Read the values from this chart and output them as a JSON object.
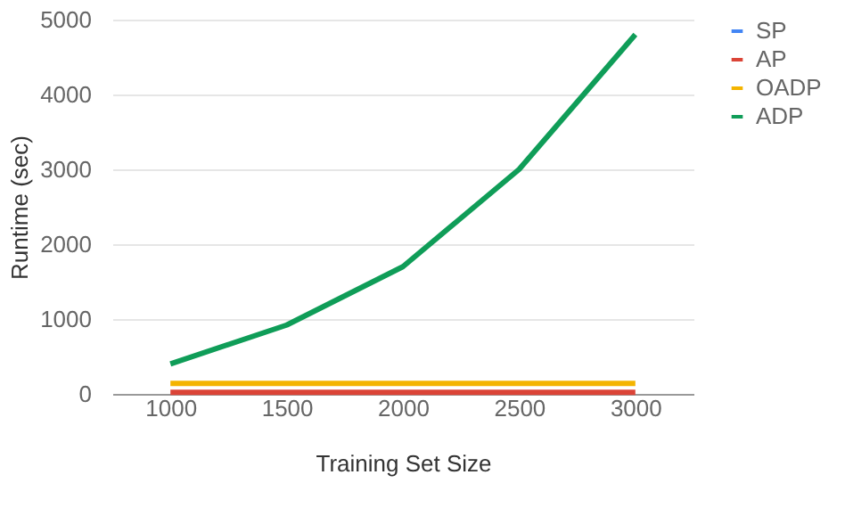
{
  "chart_data": {
    "type": "line",
    "xlabel": "Training Set Size",
    "ylabel": "Runtime (sec)",
    "x": [
      1000,
      1500,
      2000,
      2500,
      3000
    ],
    "series": [
      {
        "name": "SP",
        "color": "#4285f4",
        "values": [
          null,
          null,
          null,
          null,
          null
        ]
      },
      {
        "name": "AP",
        "color": "#db4437",
        "values": [
          20,
          20,
          20,
          20,
          20
        ]
      },
      {
        "name": "OADP",
        "color": "#f4b400",
        "values": [
          140,
          140,
          140,
          140,
          140
        ]
      },
      {
        "name": "ADP",
        "color": "#0f9d58",
        "values": [
          400,
          920,
          1700,
          3000,
          4800
        ]
      }
    ],
    "xlim": [
      750,
      3250
    ],
    "xticks": [
      1000,
      1500,
      2000,
      2500,
      3000
    ],
    "ylim": [
      0,
      5000
    ],
    "yticks": [
      0,
      1000,
      2000,
      3000,
      4000,
      5000
    ],
    "grid": "y",
    "legend": "top right",
    "line_style": "solid",
    "marker": "none"
  }
}
